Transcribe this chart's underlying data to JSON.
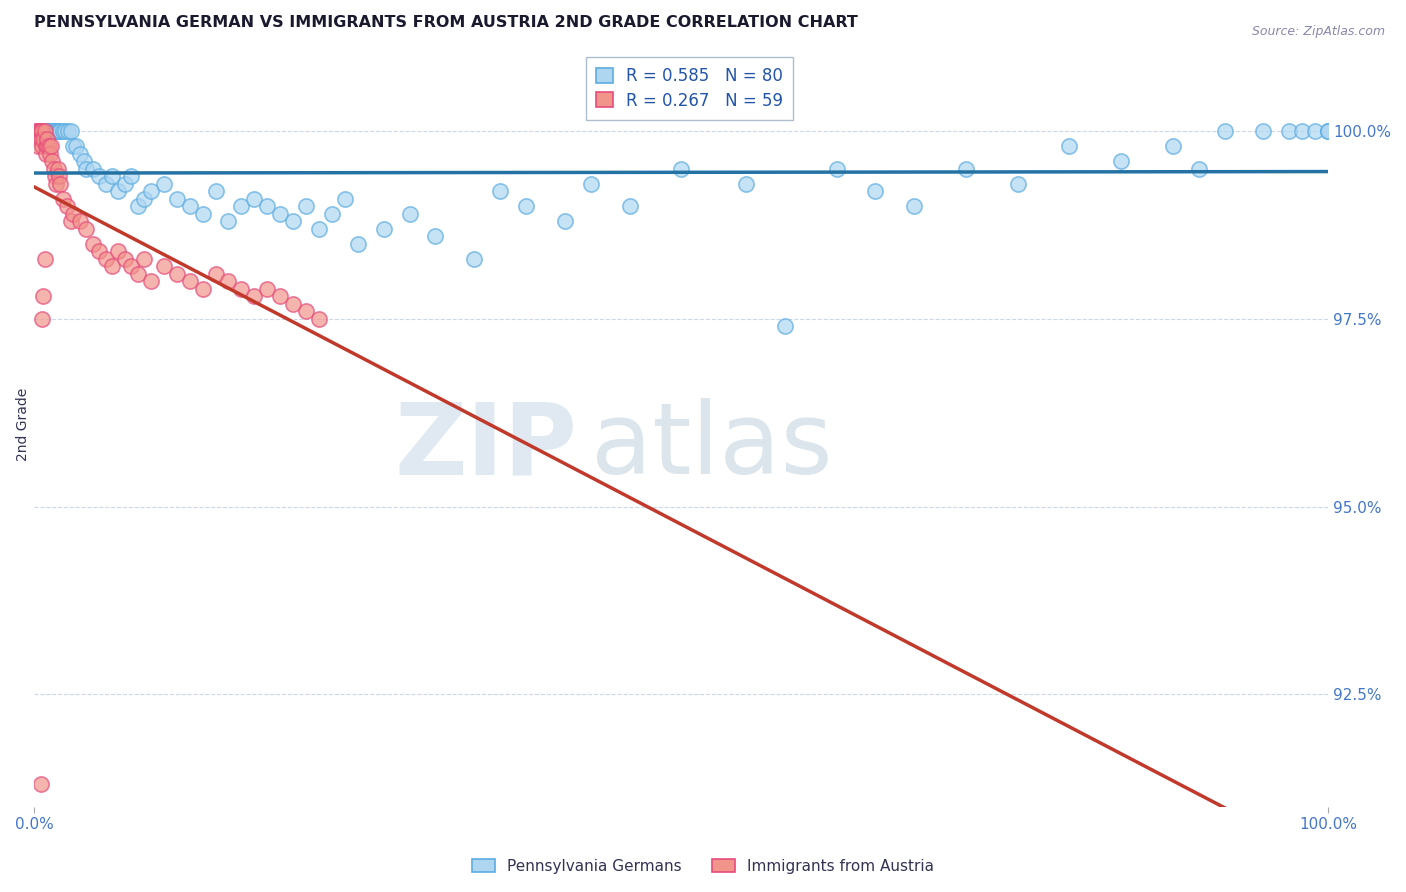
{
  "title": "PENNSYLVANIA GERMAN VS IMMIGRANTS FROM AUSTRIA 2ND GRADE CORRELATION CHART",
  "source": "Source: ZipAtlas.com",
  "ylabel": "2nd Grade",
  "ylabel_right_ticks": [
    92.5,
    95.0,
    97.5,
    100.0
  ],
  "ylabel_right_labels": [
    "92.5%",
    "95.0%",
    "97.5%",
    "100.0%"
  ],
  "xmin": 0.0,
  "xmax": 100.0,
  "ymin": 91.0,
  "ymax": 101.2,
  "blue_color": "#aed6f1",
  "blue_edge": "#5dade2",
  "pink_color": "#f1948a",
  "pink_edge": "#e74c7c",
  "trend_blue": "#2471a3",
  "trend_pink": "#c0392b",
  "legend_blue_R": 0.585,
  "legend_blue_N": 80,
  "legend_pink_R": 0.267,
  "legend_pink_N": 59,
  "blue_scatter_x": [
    0.3,
    0.5,
    0.7,
    0.8,
    0.9,
    1.0,
    1.1,
    1.2,
    1.3,
    1.4,
    1.5,
    1.6,
    1.7,
    1.8,
    1.9,
    2.0,
    2.2,
    2.4,
    2.6,
    2.8,
    3.0,
    3.2,
    3.5,
    3.8,
    4.0,
    4.5,
    5.0,
    5.5,
    6.0,
    6.5,
    7.0,
    7.5,
    8.0,
    8.5,
    9.0,
    10.0,
    11.0,
    12.0,
    13.0,
    14.0,
    15.0,
    16.0,
    17.0,
    18.0,
    19.0,
    20.0,
    21.0,
    22.0,
    23.0,
    24.0,
    25.0,
    27.0,
    29.0,
    31.0,
    34.0,
    36.0,
    38.0,
    41.0,
    43.0,
    46.0,
    50.0,
    55.0,
    58.0,
    62.0,
    65.0,
    68.0,
    72.0,
    76.0,
    80.0,
    84.0,
    88.0,
    90.0,
    92.0,
    95.0,
    97.0,
    98.0,
    99.0,
    100.0,
    100.0,
    100.0
  ],
  "blue_scatter_y": [
    100.0,
    100.0,
    100.0,
    100.0,
    100.0,
    100.0,
    100.0,
    100.0,
    100.0,
    100.0,
    100.0,
    100.0,
    100.0,
    100.0,
    100.0,
    100.0,
    100.0,
    100.0,
    100.0,
    100.0,
    99.8,
    99.8,
    99.7,
    99.6,
    99.5,
    99.5,
    99.4,
    99.3,
    99.4,
    99.2,
    99.3,
    99.4,
    99.0,
    99.1,
    99.2,
    99.3,
    99.1,
    99.0,
    98.9,
    99.2,
    98.8,
    99.0,
    99.1,
    99.0,
    98.9,
    98.8,
    99.0,
    98.7,
    98.9,
    99.1,
    98.5,
    98.7,
    98.9,
    98.6,
    98.3,
    99.2,
    99.0,
    98.8,
    99.3,
    99.0,
    99.5,
    99.3,
    97.4,
    99.5,
    99.2,
    99.0,
    99.5,
    99.3,
    99.8,
    99.6,
    99.8,
    99.5,
    100.0,
    100.0,
    100.0,
    100.0,
    100.0,
    100.0,
    100.0,
    100.0
  ],
  "pink_scatter_x": [
    0.1,
    0.2,
    0.3,
    0.3,
    0.4,
    0.4,
    0.5,
    0.5,
    0.6,
    0.6,
    0.7,
    0.8,
    0.9,
    0.9,
    1.0,
    1.0,
    1.1,
    1.2,
    1.3,
    1.4,
    1.5,
    1.6,
    1.7,
    1.8,
    1.9,
    2.0,
    2.2,
    2.5,
    2.8,
    3.0,
    3.5,
    4.0,
    4.5,
    5.0,
    5.5,
    6.0,
    6.5,
    7.0,
    7.5,
    8.0,
    8.5,
    9.0,
    10.0,
    11.0,
    12.0,
    13.0,
    14.0,
    15.0,
    16.0,
    17.0,
    18.0,
    19.0,
    20.0,
    21.0,
    22.0,
    0.8,
    0.7,
    0.6,
    0.5
  ],
  "pink_scatter_y": [
    100.0,
    100.0,
    100.0,
    99.8,
    100.0,
    99.9,
    100.0,
    99.9,
    100.0,
    99.8,
    99.9,
    100.0,
    99.8,
    99.7,
    99.8,
    99.9,
    99.8,
    99.7,
    99.8,
    99.6,
    99.5,
    99.4,
    99.3,
    99.5,
    99.4,
    99.3,
    99.1,
    99.0,
    98.8,
    98.9,
    98.8,
    98.7,
    98.5,
    98.4,
    98.3,
    98.2,
    98.4,
    98.3,
    98.2,
    98.1,
    98.3,
    98.0,
    98.2,
    98.1,
    98.0,
    97.9,
    98.1,
    98.0,
    97.9,
    97.8,
    97.9,
    97.8,
    97.7,
    97.6,
    97.5,
    98.3,
    97.8,
    97.5,
    91.3
  ]
}
